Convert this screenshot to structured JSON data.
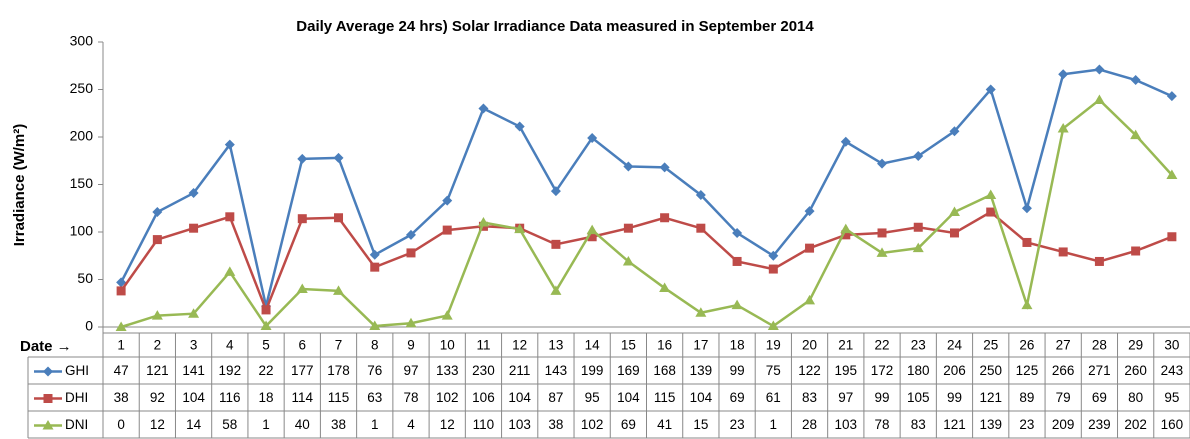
{
  "chart_data": {
    "type": "line",
    "title": "Daily Average 24 hrs) Solar Irradiance Data measured in September 2014",
    "y_label": "Irradiance (W/m²)",
    "x_label": "Date →",
    "categories": [
      "1",
      "2",
      "3",
      "4",
      "5",
      "6",
      "7",
      "8",
      "9",
      "10",
      "11",
      "12",
      "13",
      "14",
      "15",
      "16",
      "17",
      "18",
      "19",
      "20",
      "21",
      "22",
      "23",
      "24",
      "25",
      "26",
      "27",
      "28",
      "29",
      "30"
    ],
    "series": [
      {
        "name": "GHI",
        "color": "#4a7ebb",
        "marker": "diamond",
        "values": [
          47,
          121,
          141,
          192,
          22,
          177,
          178,
          76,
          97,
          133,
          230,
          211,
          143,
          199,
          169,
          168,
          139,
          99,
          75,
          122,
          195,
          172,
          180,
          206,
          250,
          125,
          266,
          271,
          260,
          243
        ]
      },
      {
        "name": "DHI",
        "color": "#be4b48",
        "marker": "square",
        "values": [
          38,
          92,
          104,
          116,
          18,
          114,
          115,
          63,
          78,
          102,
          106,
          104,
          87,
          95,
          104,
          115,
          104,
          69,
          61,
          83,
          97,
          99,
          105,
          99,
          121,
          89,
          79,
          69,
          80,
          95
        ]
      },
      {
        "name": "DNI",
        "color": "#98b954",
        "marker": "triangle",
        "values": [
          0,
          12,
          14,
          58,
          1,
          40,
          38,
          1,
          4,
          12,
          110,
          103,
          38,
          102,
          69,
          41,
          15,
          23,
          1,
          28,
          103,
          78,
          83,
          121,
          139,
          23,
          209,
          239,
          202,
          160
        ]
      }
    ],
    "ylim": [
      0,
      300
    ],
    "yticks": [
      0,
      50,
      100,
      150,
      200,
      250,
      300
    ],
    "grid": false
  }
}
